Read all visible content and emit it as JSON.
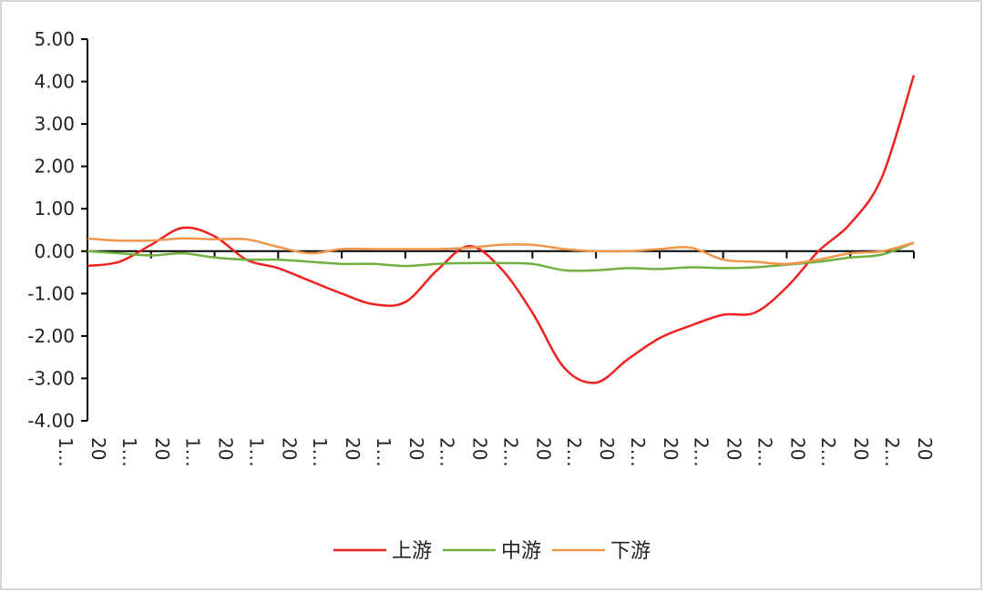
{
  "chart_data": {
    "type": "line",
    "categories": [
      "20\n1…",
      null,
      "20\n1…",
      null,
      "20\n1…",
      null,
      "20\n1…",
      null,
      "20\n1…",
      null,
      "20\n1…",
      null,
      "20\n2…",
      null,
      "20\n2…",
      null,
      "20\n2…",
      null,
      "20\n2…",
      null,
      "20\n2…",
      null,
      "20\n2…",
      null,
      "20\n2…",
      null,
      "20\n2…"
    ],
    "series": [
      {
        "name": "上游",
        "color": "#f0201e",
        "values": [
          -0.35,
          -0.25,
          0.15,
          0.55,
          0.35,
          -0.2,
          -0.4,
          -0.7,
          -1.0,
          -1.25,
          -1.2,
          -0.45,
          0.12,
          -0.4,
          -1.45,
          -2.75,
          -3.1,
          -2.55,
          -2.05,
          -1.75,
          -1.5,
          -1.45,
          -0.85,
          0.0,
          0.65,
          1.75,
          4.15
        ]
      },
      {
        "name": "中游",
        "color": "#70b040",
        "values": [
          0.0,
          -0.05,
          -0.1,
          -0.05,
          -0.15,
          -0.2,
          -0.2,
          -0.25,
          -0.3,
          -0.3,
          -0.35,
          -0.3,
          -0.28,
          -0.28,
          -0.3,
          -0.45,
          -0.45,
          -0.4,
          -0.42,
          -0.38,
          -0.4,
          -0.38,
          -0.32,
          -0.25,
          -0.15,
          -0.08,
          0.2
        ]
      },
      {
        "name": "下游",
        "color": "#f0964a",
        "values": [
          0.3,
          0.25,
          0.25,
          0.3,
          0.28,
          0.28,
          0.1,
          -0.05,
          0.05,
          0.05,
          0.05,
          0.05,
          0.08,
          0.15,
          0.15,
          0.05,
          0.0,
          0.0,
          0.05,
          0.08,
          -0.2,
          -0.25,
          -0.3,
          -0.2,
          -0.05,
          0.0,
          0.2
        ]
      }
    ],
    "ylim": [
      -4,
      5
    ],
    "yticks": [
      {
        "value": -4,
        "label": "-4.00"
      },
      {
        "value": -3,
        "label": "-3.00"
      },
      {
        "value": -2,
        "label": "-2.00"
      },
      {
        "value": -1,
        "label": "-1.00"
      },
      {
        "value": 0,
        "label": "0.00"
      },
      {
        "value": 1,
        "label": "1.00"
      },
      {
        "value": 2,
        "label": "2.00"
      },
      {
        "value": 3,
        "label": "3.00"
      },
      {
        "value": 4,
        "label": "4.00"
      },
      {
        "value": 5,
        "label": "5.00"
      }
    ],
    "smooth": true,
    "legend": "bottom"
  }
}
